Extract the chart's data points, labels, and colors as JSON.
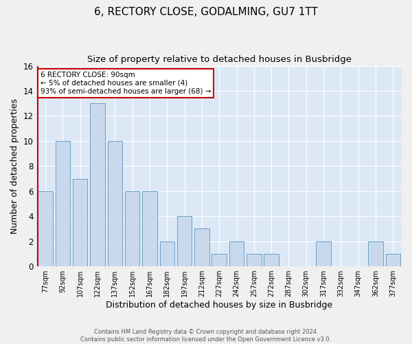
{
  "title": "6, RECTORY CLOSE, GODALMING, GU7 1TT",
  "subtitle": "Size of property relative to detached houses in Busbridge",
  "xlabel": "Distribution of detached houses by size in Busbridge",
  "ylabel": "Number of detached properties",
  "footer_line1": "Contains HM Land Registry data © Crown copyright and database right 2024.",
  "footer_line2": "Contains public sector information licensed under the Open Government Licence v3.0.",
  "categories": [
    "77sqm",
    "92sqm",
    "107sqm",
    "122sqm",
    "137sqm",
    "152sqm",
    "167sqm",
    "182sqm",
    "197sqm",
    "212sqm",
    "227sqm",
    "242sqm",
    "257sqm",
    "272sqm",
    "287sqm",
    "302sqm",
    "317sqm",
    "332sqm",
    "347sqm",
    "362sqm",
    "377sqm"
  ],
  "vals": [
    6,
    10,
    7,
    13,
    10,
    6,
    6,
    2,
    4,
    3,
    1,
    2,
    1,
    1,
    0,
    0,
    2,
    0,
    0,
    2,
    1
  ],
  "bar_color": "#c9d9ed",
  "bar_edge_color": "#6a9ec7",
  "highlight_color": "#cc0000",
  "annotation_line1": "6 RECTORY CLOSE: 90sqm",
  "annotation_line2": "← 5% of detached houses are smaller (4)",
  "annotation_line3": "93% of semi-detached houses are larger (68) →",
  "annotation_box_edge": "#cc0000",
  "ylim": [
    0,
    16
  ],
  "yticks": [
    0,
    2,
    4,
    6,
    8,
    10,
    12,
    14,
    16
  ],
  "plot_background": "#dce8f5",
  "fig_background": "#f0f0f0",
  "title_fontsize": 11,
  "subtitle_fontsize": 9.5,
  "ylabel_fontsize": 9,
  "xlabel_fontsize": 9,
  "annotation_fontsize": 7.5,
  "footer_fontsize": 6
}
